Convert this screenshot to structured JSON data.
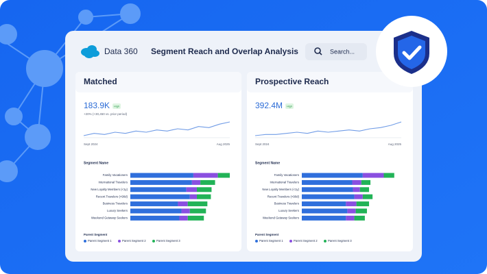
{
  "header": {
    "brand": "Data 360",
    "title": "Segment Reach and Overlap Analysis",
    "search": "Search..."
  },
  "panels": [
    {
      "title": "Matched",
      "kpi": "183.9K",
      "badge": "High",
      "change": "+20% (+30,450 vs. prior period)",
      "trend": {
        "x_start": "Sept 2024",
        "x_end": "Aug 2025",
        "values": [
          10,
          12,
          11,
          13,
          12,
          14,
          13,
          15,
          14,
          16,
          15,
          18,
          17,
          20,
          22
        ]
      },
      "bars": {
        "axis_title": "Segment Name",
        "categories": [
          "Family Vacationers",
          "International Travelers",
          "New Loyalty Members (<1y)",
          "Recent Travelers (<90d)",
          "Business Travelers",
          "Luxury Seekers",
          "Weekend Getaway Seekers"
        ],
        "series": [
          {
            "name": "Parent Segment 1",
            "color": "#2f6fdc",
            "values": [
              90,
              88,
              80,
              85,
              68,
              73,
              70
            ]
          },
          {
            "name": "Parent Segment 2",
            "color": "#8a4fe0",
            "values": [
              35,
              12,
              15,
              10,
              14,
              12,
              12
            ]
          },
          {
            "name": "Parent Segment 3",
            "color": "#22b357",
            "values": [
              17,
              21,
              21,
              20,
              28,
              23,
              23
            ]
          }
        ]
      },
      "legend_title": "Parent Segment"
    },
    {
      "title": "Prospective Reach",
      "kpi": "392.4M",
      "badge": "High",
      "trend": {
        "x_start": "Sept 2024",
        "x_end": "Aug 2025",
        "values": [
          10,
          11,
          11,
          12,
          13,
          12,
          14,
          13,
          14,
          15,
          14,
          16,
          17,
          19,
          22
        ]
      },
      "bars": {
        "axis_title": "Segment Name",
        "categories": [
          "Family Vacationers",
          "International Travelers",
          "New Loyalty Members (<1y)",
          "Recent Travelers (<90d)",
          "Business Travelers",
          "Luxury Seekers",
          "Weekend Getaway Seekers"
        ],
        "series": [
          {
            "name": "Parent Segment 1",
            "color": "#2f6fdc",
            "values": [
              87,
              72,
              73,
              75,
              63,
              65,
              63
            ]
          },
          {
            "name": "Parent Segment 2",
            "color": "#8a4fe0",
            "values": [
              30,
              13,
              10,
              12,
              15,
              12,
              12
            ]
          },
          {
            "name": "Parent Segment 3",
            "color": "#22b357",
            "values": [
              15,
              13,
              13,
              14,
              18,
              16,
              15
            ]
          }
        ]
      },
      "legend_title": "Parent Segment"
    }
  ]
}
